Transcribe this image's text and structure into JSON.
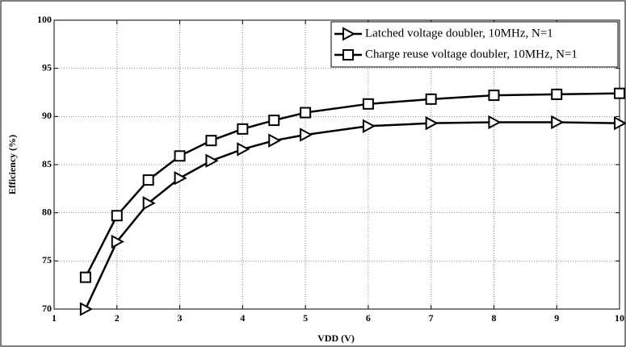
{
  "chart_data": {
    "type": "line",
    "xlabel": "VDD (V)",
    "ylabel": "Efficiency (%)",
    "x": [
      1.5,
      2,
      2.5,
      3,
      3.5,
      4,
      4.5,
      5,
      6,
      7,
      8,
      9,
      10
    ],
    "series": [
      {
        "name": "Latched voltage doubler, 10MHz, N=1",
        "color": "#000000",
        "marker": "triangle-right",
        "values": [
          70,
          77,
          81,
          83.6,
          85.4,
          86.6,
          87.5,
          88.1,
          89,
          89.3,
          89.4,
          89.4,
          89.3
        ]
      },
      {
        "name": "Charge reuse voltage doubler, 10MHz, N=1",
        "color": "#000000",
        "marker": "square",
        "values": [
          73.3,
          79.7,
          83.4,
          85.9,
          87.5,
          88.7,
          89.6,
          90.4,
          91.3,
          91.8,
          92.2,
          92.3,
          92.4
        ]
      }
    ],
    "xlim": [
      1,
      10
    ],
    "xticks": [
      1,
      2,
      3,
      4,
      5,
      6,
      7,
      8,
      9,
      10
    ],
    "ylim": [
      70,
      100
    ],
    "yticks": [
      70,
      75,
      80,
      85,
      90,
      95,
      100
    ],
    "grid": true,
    "legend": "upper right"
  }
}
